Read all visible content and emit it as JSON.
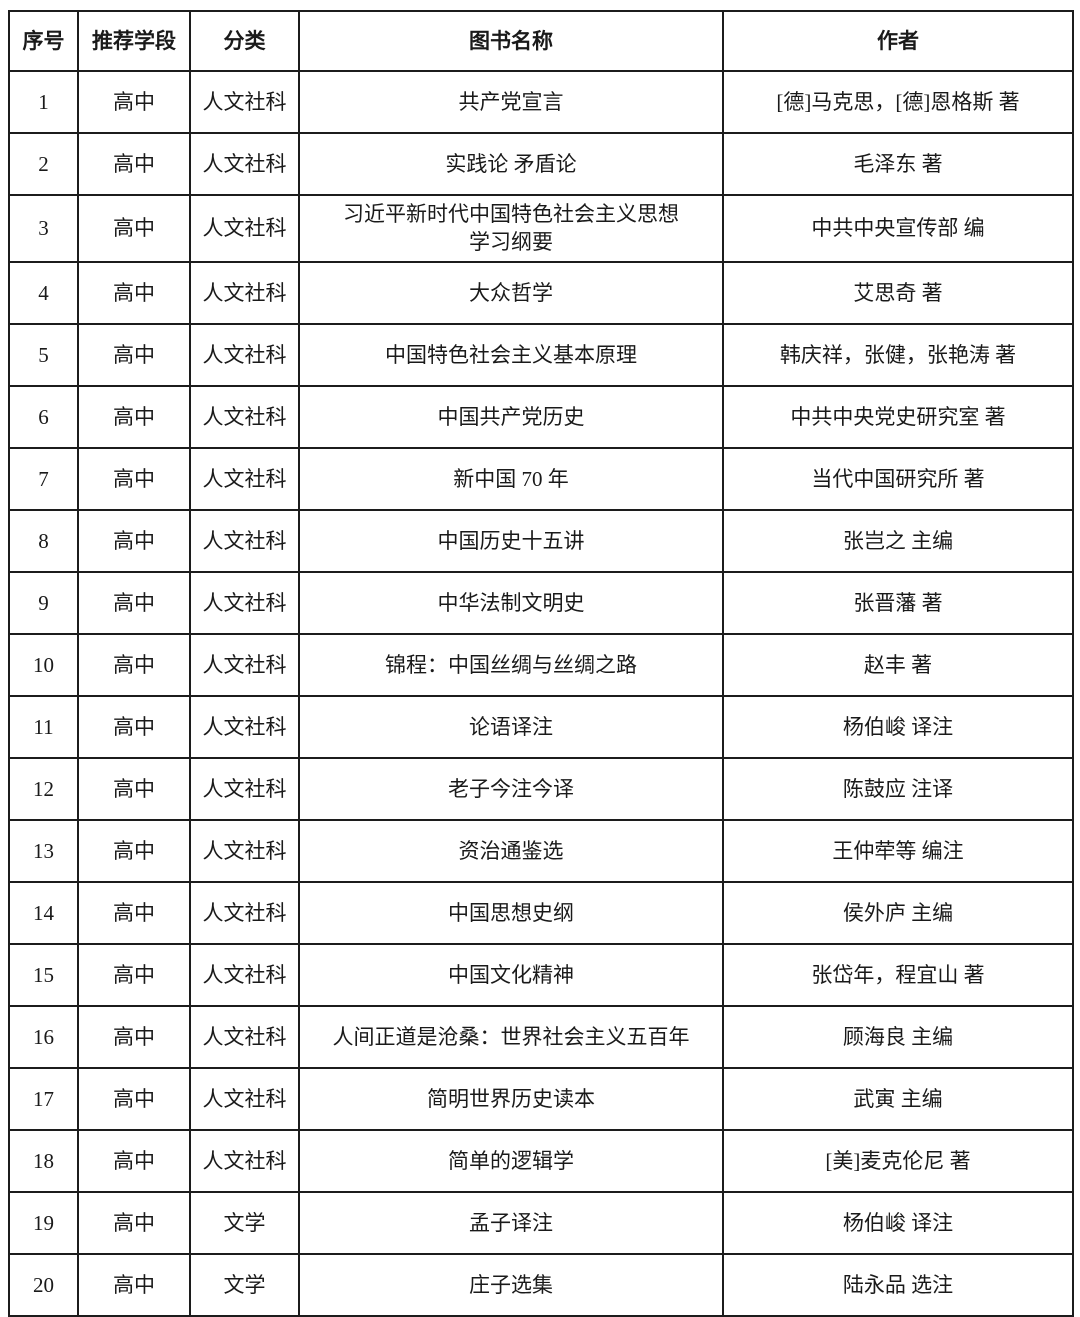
{
  "table": {
    "columns": [
      "序号",
      "推荐学段",
      "分类",
      "图书名称",
      "作者"
    ],
    "rows": [
      {
        "no": "1",
        "stage": "高中",
        "category": "人文社科",
        "title": "共产党宣言",
        "author": "[德]马克思，[德]恩格斯 著"
      },
      {
        "no": "2",
        "stage": "高中",
        "category": "人文社科",
        "title": "实践论 矛盾论",
        "author": "毛泽东 著"
      },
      {
        "no": "3",
        "stage": "高中",
        "category": "人文社科",
        "title": "习近平新时代中国特色社会主义思想\n学习纲要",
        "author": "中共中央宣传部 编"
      },
      {
        "no": "4",
        "stage": "高中",
        "category": "人文社科",
        "title": "大众哲学",
        "author": "艾思奇 著"
      },
      {
        "no": "5",
        "stage": "高中",
        "category": "人文社科",
        "title": "中国特色社会主义基本原理",
        "author": "韩庆祥，张健，张艳涛 著"
      },
      {
        "no": "6",
        "stage": "高中",
        "category": "人文社科",
        "title": "中国共产党历史",
        "author": "中共中央党史研究室 著"
      },
      {
        "no": "7",
        "stage": "高中",
        "category": "人文社科",
        "title": "新中国 70 年",
        "author": "当代中国研究所 著"
      },
      {
        "no": "8",
        "stage": "高中",
        "category": "人文社科",
        "title": "中国历史十五讲",
        "author": "张岂之 主编"
      },
      {
        "no": "9",
        "stage": "高中",
        "category": "人文社科",
        "title": "中华法制文明史",
        "author": "张晋藩 著"
      },
      {
        "no": "10",
        "stage": "高中",
        "category": "人文社科",
        "title": "锦程：中国丝绸与丝绸之路",
        "author": "赵丰 著"
      },
      {
        "no": "11",
        "stage": "高中",
        "category": "人文社科",
        "title": "论语译注",
        "author": "杨伯峻 译注"
      },
      {
        "no": "12",
        "stage": "高中",
        "category": "人文社科",
        "title": "老子今注今译",
        "author": "陈鼓应 注译"
      },
      {
        "no": "13",
        "stage": "高中",
        "category": "人文社科",
        "title": "资治通鉴选",
        "author": "王仲荦等 编注"
      },
      {
        "no": "14",
        "stage": "高中",
        "category": "人文社科",
        "title": "中国思想史纲",
        "author": "侯外庐 主编"
      },
      {
        "no": "15",
        "stage": "高中",
        "category": "人文社科",
        "title": "中国文化精神",
        "author": "张岱年，程宜山 著"
      },
      {
        "no": "16",
        "stage": "高中",
        "category": "人文社科",
        "title": "人间正道是沧桑：世界社会主义五百年",
        "author": "顾海良 主编"
      },
      {
        "no": "17",
        "stage": "高中",
        "category": "人文社科",
        "title": "简明世界历史读本",
        "author": "武寅 主编"
      },
      {
        "no": "18",
        "stage": "高中",
        "category": "人文社科",
        "title": "简单的逻辑学",
        "author": "[美]麦克伦尼 著"
      },
      {
        "no": "19",
        "stage": "高中",
        "category": "文学",
        "title": "孟子译注",
        "author": "杨伯峻 译注"
      },
      {
        "no": "20",
        "stage": "高中",
        "category": "文学",
        "title": "庄子选集",
        "author": "陆永品 选注"
      }
    ]
  }
}
